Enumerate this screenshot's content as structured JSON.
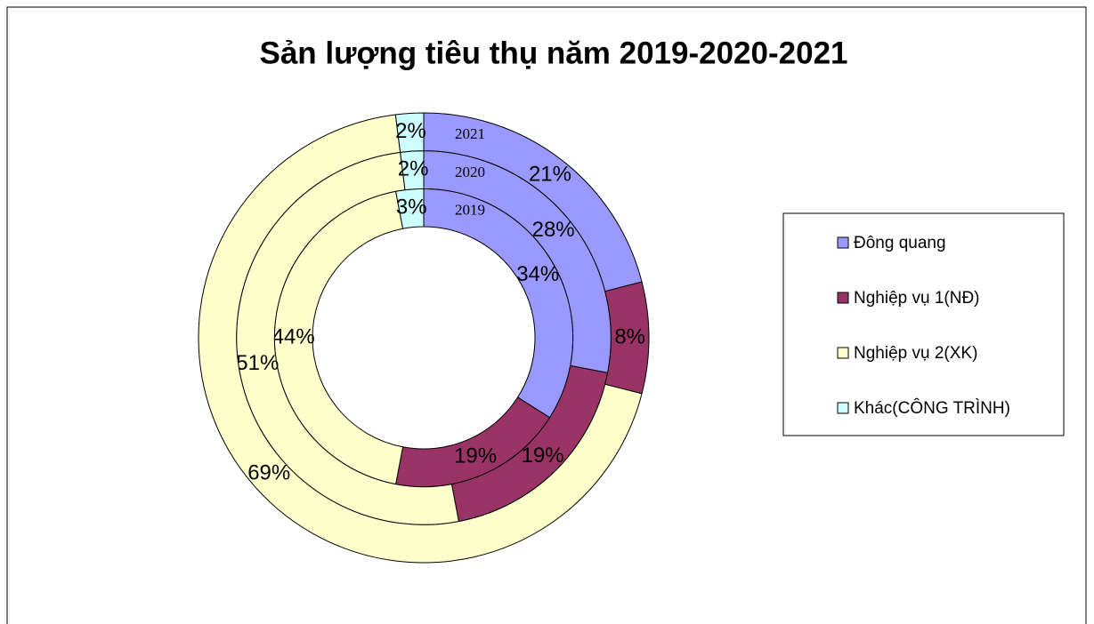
{
  "chart_data": {
    "type": "doughnut",
    "title": "Sản lượng tiêu thụ năm 2019-2020-2021",
    "categories": [
      "Đông quang",
      "Nghiệp vụ 1(NĐ)",
      "Nghiệp vụ 2(XK)",
      "Khác(CÔNG TRÌNH)"
    ],
    "colors": [
      "#9999ff",
      "#993366",
      "#ffffcc",
      "#ccffff"
    ],
    "series": [
      {
        "name": "2019",
        "values": [
          34,
          19,
          44,
          3
        ],
        "value_labels": [
          "34%",
          "19%",
          "44%",
          "3%"
        ]
      },
      {
        "name": "2020",
        "values": [
          28,
          19,
          51,
          2
        ],
        "value_labels": [
          "28%",
          "19%",
          "51%",
          "2%"
        ]
      },
      {
        "name": "2021",
        "values": [
          21,
          8,
          69,
          2
        ],
        "value_labels": [
          "21%",
          "8%",
          "69%",
          "2%"
        ]
      }
    ],
    "legend": "right"
  }
}
